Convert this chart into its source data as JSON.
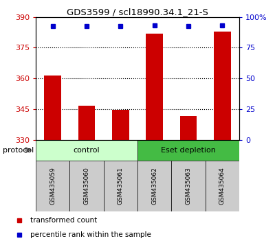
{
  "title": "GDS3599 / scl18990.34.1_21-S",
  "samples": [
    "GSM435059",
    "GSM435060",
    "GSM435061",
    "GSM435062",
    "GSM435063",
    "GSM435064"
  ],
  "transformed_counts": [
    361.5,
    346.5,
    344.5,
    382.0,
    341.5,
    383.0
  ],
  "percentile_rank_values": [
    385.5,
    385.5,
    385.5,
    386.0,
    385.5,
    386.0
  ],
  "ylim_left": [
    330,
    390
  ],
  "ylim_right": [
    0,
    100
  ],
  "yticks_left": [
    330,
    345,
    360,
    375,
    390
  ],
  "yticks_right": [
    0,
    25,
    50,
    75,
    100
  ],
  "ytick_labels_right": [
    "0",
    "25",
    "50",
    "75",
    "100%"
  ],
  "bar_color": "#cc0000",
  "dot_color": "#0000cc",
  "bar_bottom": 330,
  "control_color_light": "#ccffcc",
  "eset_color": "#44bb44",
  "xlabel_area_color": "#cccccc",
  "bg_color": "#ffffff",
  "legend_bar_label": "transformed count",
  "legend_dot_label": "percentile rank within the sample",
  "protocol_label": "protocol",
  "control_label": "control",
  "eset_label": "Eset depletion",
  "grid_dotted_at": [
    345,
    360,
    375
  ]
}
